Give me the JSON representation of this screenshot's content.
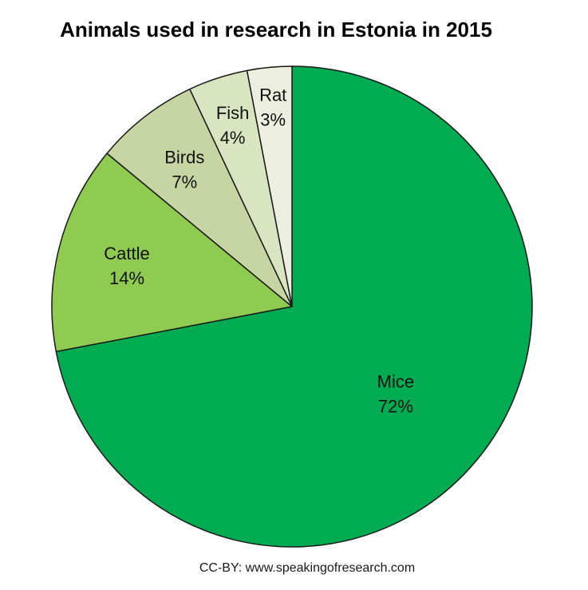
{
  "title": "Animals used in research in Estonia in 2015",
  "footer": "CC-BY: www.speakingofresearch.com",
  "chart_data": {
    "type": "pie",
    "title": "Animals used in research in Estonia in 2015",
    "categories": [
      "Mice",
      "Cattle",
      "Birds",
      "Fish",
      "Rat"
    ],
    "values": [
      72,
      14,
      7,
      4,
      3
    ],
    "unit": "%",
    "slice_colors": [
      "#00AB51",
      "#8ECB50",
      "#C6D5A2",
      "#D9E4C1",
      "#ECEFDF"
    ],
    "outline_color": "#1a1a1a",
    "label_color": "#111111",
    "start_angle_deg": 0,
    "direction": "clockwise",
    "labels_inside": true,
    "label_radius_fractions": [
      0.56,
      0.71,
      0.73,
      0.8,
      0.84
    ],
    "legend": "none",
    "background": "#ffffff"
  }
}
